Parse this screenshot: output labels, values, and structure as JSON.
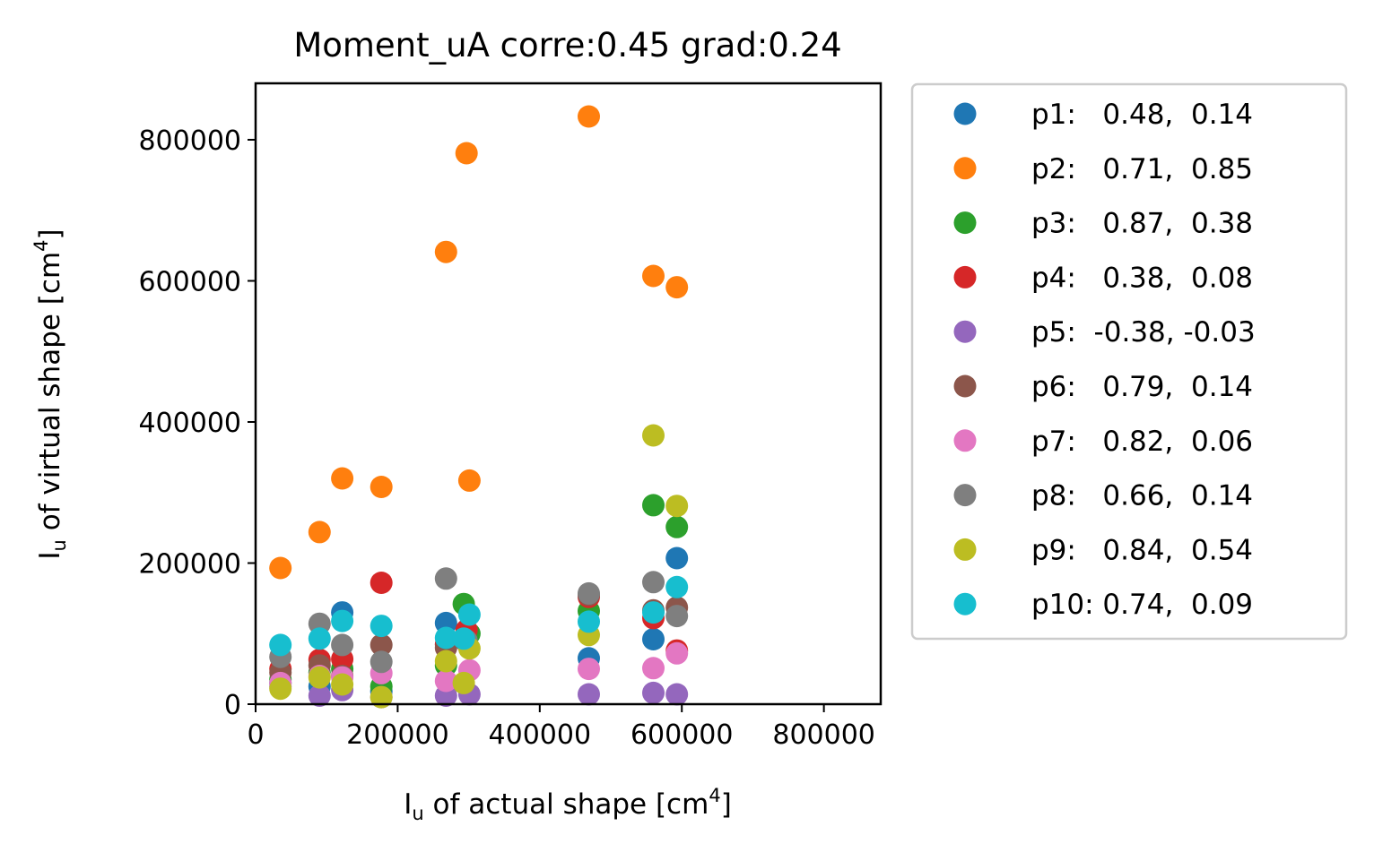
{
  "chart_data": {
    "type": "scatter",
    "title": "Moment_uA corre:0.45 grad:0.24",
    "xlabel": {
      "base": "I",
      "sub": "u",
      "mid": " of actual shape [cm",
      "sup": "4",
      "end": "]"
    },
    "ylabel": {
      "base": "I",
      "sub": "u",
      "mid": " of virtual shape [cm",
      "sup": "4",
      "end": "]"
    },
    "xlim": [
      0,
      880000
    ],
    "ylim": [
      0,
      880000
    ],
    "xticks": [
      0,
      200000,
      400000,
      600000,
      800000
    ],
    "yticks": [
      0,
      200000,
      400000,
      600000,
      800000
    ],
    "xtick_labels": [
      "0",
      "200000",
      "400000",
      "600000",
      "800000"
    ],
    "ytick_labels": [
      "0",
      "200000",
      "400000",
      "600000",
      "800000"
    ],
    "grid": false,
    "legend_position": "outside-right",
    "series": [
      {
        "name": "p1:   0.48,  0.14",
        "color": "#1f77b4",
        "points": [
          [
            35000,
            30000
          ],
          [
            90000,
            25000
          ],
          [
            122000,
            130000
          ],
          [
            177000,
            18000
          ],
          [
            268000,
            115000
          ],
          [
            297000,
            95000
          ],
          [
            469000,
            65000
          ],
          [
            560000,
            92000
          ],
          [
            593000,
            207000
          ]
        ]
      },
      {
        "name": "p2:   0.71,  0.85",
        "color": "#ff7f0e",
        "points": [
          [
            35000,
            193000
          ],
          [
            90000,
            244000
          ],
          [
            122000,
            320000
          ],
          [
            177000,
            308000
          ],
          [
            268000,
            641000
          ],
          [
            297000,
            781000
          ],
          [
            301000,
            317000
          ],
          [
            469000,
            833000
          ],
          [
            560000,
            607000
          ],
          [
            593000,
            591000
          ]
        ]
      },
      {
        "name": "p3:   0.87,  0.38",
        "color": "#2ca02c",
        "points": [
          [
            35000,
            35000
          ],
          [
            90000,
            45000
          ],
          [
            122000,
            50000
          ],
          [
            177000,
            25000
          ],
          [
            268000,
            55000
          ],
          [
            293000,
            142000
          ],
          [
            301000,
            100000
          ],
          [
            469000,
            132000
          ],
          [
            560000,
            282000
          ],
          [
            593000,
            251000
          ]
        ]
      },
      {
        "name": "p4:   0.38,  0.08",
        "color": "#d62728",
        "points": [
          [
            35000,
            50000
          ],
          [
            90000,
            63000
          ],
          [
            122000,
            64000
          ],
          [
            177000,
            172000
          ],
          [
            268000,
            85000
          ],
          [
            297000,
            105000
          ],
          [
            469000,
            152000
          ],
          [
            560000,
            122000
          ],
          [
            593000,
            76000
          ]
        ]
      },
      {
        "name": "p5:  -0.38, -0.03",
        "color": "#9467bd",
        "points": [
          [
            35000,
            25000
          ],
          [
            90000,
            12000
          ],
          [
            122000,
            20000
          ],
          [
            177000,
            10000
          ],
          [
            268000,
            12000
          ],
          [
            301000,
            14000
          ],
          [
            469000,
            14000
          ],
          [
            560000,
            16000
          ],
          [
            593000,
            14000
          ]
        ]
      },
      {
        "name": "p6:   0.79,  0.14",
        "color": "#8c564b",
        "points": [
          [
            35000,
            45000
          ],
          [
            90000,
            55000
          ],
          [
            122000,
            40000
          ],
          [
            177000,
            84000
          ],
          [
            268000,
            80000
          ],
          [
            297000,
            88000
          ],
          [
            469000,
            155000
          ],
          [
            560000,
            133000
          ],
          [
            593000,
            137000
          ]
        ]
      },
      {
        "name": "p7:   0.82,  0.06",
        "color": "#e377c2",
        "points": [
          [
            35000,
            30000
          ],
          [
            90000,
            40000
          ],
          [
            122000,
            38000
          ],
          [
            177000,
            44000
          ],
          [
            268000,
            33000
          ],
          [
            301000,
            48000
          ],
          [
            469000,
            50000
          ],
          [
            560000,
            51000
          ],
          [
            593000,
            72000
          ]
        ]
      },
      {
        "name": "p8:   0.66,  0.14",
        "color": "#7f7f7f",
        "points": [
          [
            35000,
            67000
          ],
          [
            90000,
            114000
          ],
          [
            122000,
            84000
          ],
          [
            177000,
            60000
          ],
          [
            268000,
            178000
          ],
          [
            297000,
            90000
          ],
          [
            469000,
            157000
          ],
          [
            560000,
            173000
          ],
          [
            593000,
            125000
          ]
        ]
      },
      {
        "name": "p9:   0.84,  0.54",
        "color": "#bcbd22",
        "points": [
          [
            35000,
            22000
          ],
          [
            90000,
            38000
          ],
          [
            122000,
            28000
          ],
          [
            177000,
            10000
          ],
          [
            268000,
            61000
          ],
          [
            293000,
            30000
          ],
          [
            301000,
            79000
          ],
          [
            469000,
            98000
          ],
          [
            560000,
            381000
          ],
          [
            593000,
            281000
          ]
        ]
      },
      {
        "name": "p10: 0.74,  0.09",
        "color": "#17becf",
        "points": [
          [
            35000,
            84000
          ],
          [
            90000,
            93000
          ],
          [
            122000,
            118000
          ],
          [
            177000,
            111000
          ],
          [
            268000,
            94000
          ],
          [
            293000,
            93000
          ],
          [
            301000,
            127000
          ],
          [
            469000,
            117000
          ],
          [
            560000,
            130000
          ],
          [
            593000,
            166000
          ]
        ]
      }
    ]
  }
}
